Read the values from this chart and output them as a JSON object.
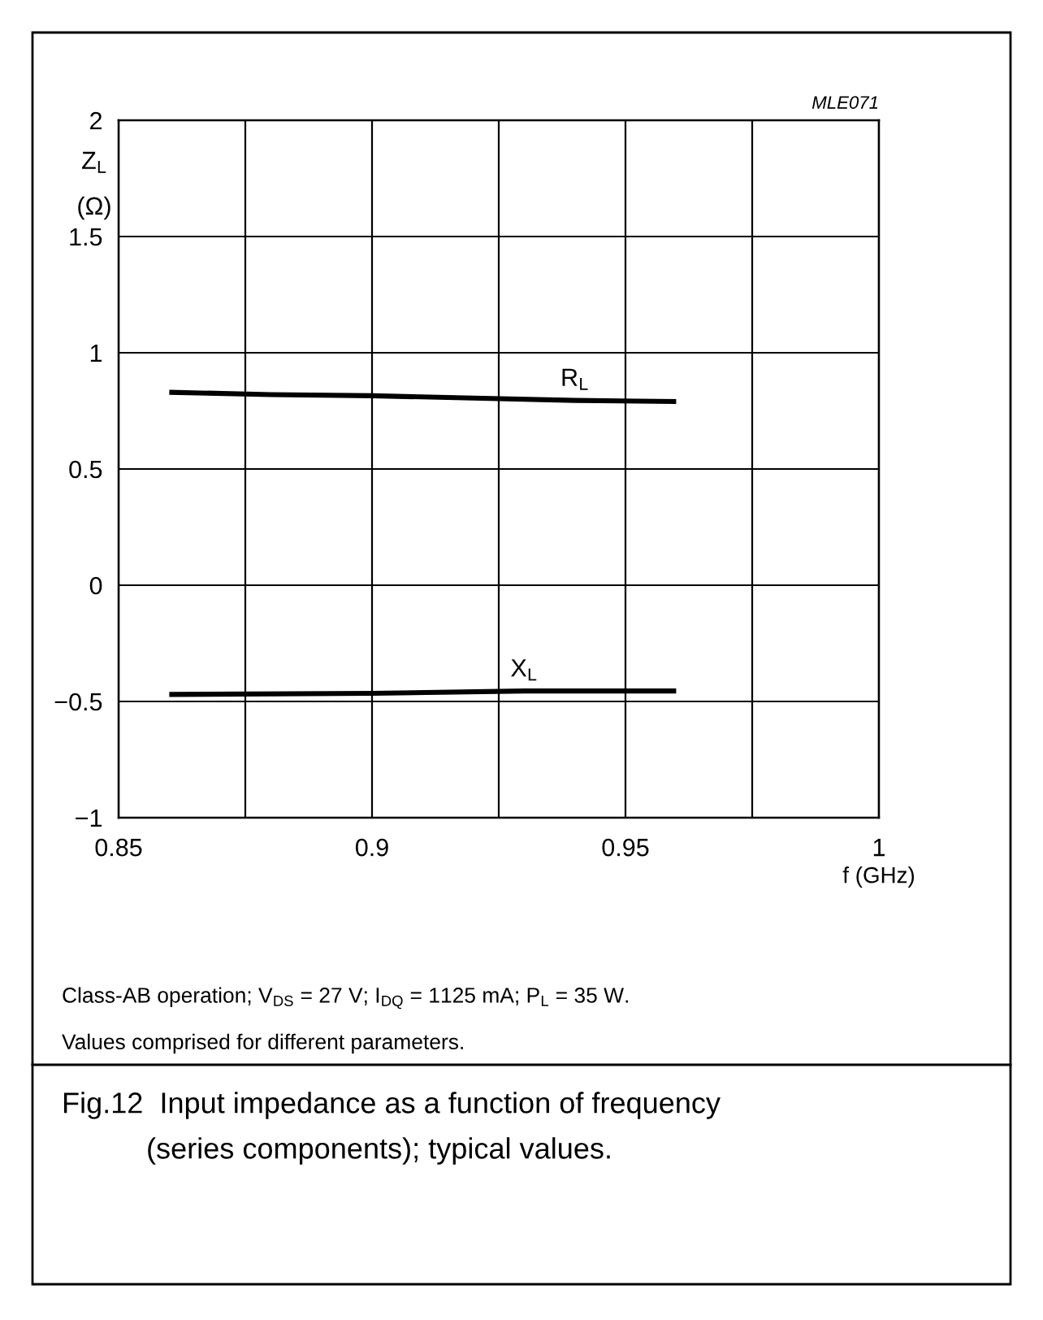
{
  "chart_data": {
    "type": "line",
    "title": "Fig.12  Input impedance as a function of frequency\n(series components); typical values.",
    "xlabel": "f (GHz)",
    "ylabel": "Z$_{L}$\n(Ω)",
    "annotations": [
      "MLE071",
      "Class-AB operation; V$_{DS}$ = 27 V; I$_{DQ}$ = 1125 mA; P$_{L}$ = 35 W.",
      "Values comprised for different parameters."
    ],
    "xlim": [
      0.85,
      1
    ],
    "xticks": [
      0.85,
      {
        "value": 0.875,
        "label": null
      },
      0.9,
      {
        "value": 0.925,
        "label": null
      },
      0.95,
      {
        "value": 0.975,
        "label": null
      },
      1
    ],
    "ylim": [
      -1,
      2
    ],
    "yticks": [
      {
        "value": -1,
        "label": "−1"
      },
      {
        "value": -0.5,
        "label": "−0.5"
      },
      0,
      0.5,
      1,
      1.5,
      2
    ],
    "grid": true,
    "marker": "none",
    "line_style": "solid",
    "legend": false,
    "series": [
      {
        "name": "R$_{L}$",
        "color": "#000000",
        "x": [
          0.86,
          0.88,
          0.9,
          0.92,
          0.94,
          0.96
        ],
        "values": [
          0.83,
          0.82,
          0.815,
          0.805,
          0.795,
          0.79
        ]
      },
      {
        "name": "X$_{L}$",
        "color": "#000000",
        "x": [
          0.86,
          0.9,
          0.93,
          0.96
        ],
        "values": [
          -0.47,
          -0.465,
          -0.455,
          -0.455
        ]
      }
    ]
  }
}
